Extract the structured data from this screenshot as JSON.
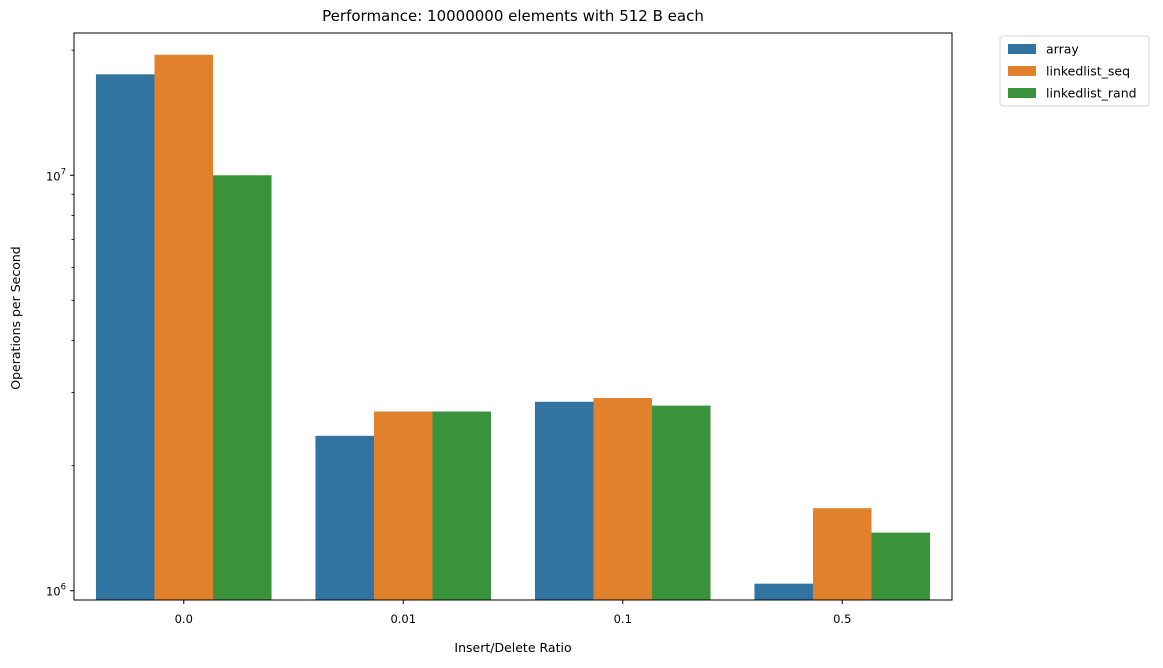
{
  "chart_data": {
    "type": "bar",
    "title": "Performance: 10000000 elements with 512 B each",
    "xlabel": "Insert/Delete Ratio",
    "ylabel": "Operations per Second",
    "yscale": "log",
    "ylim": [
      950000,
      22000000
    ],
    "categories": [
      "0.0",
      "0.01",
      "0.1",
      "0.5"
    ],
    "series": [
      {
        "name": "array",
        "color": "#3274a1",
        "values": [
          17500000,
          2360000,
          2850000,
          1040000
        ]
      },
      {
        "name": "linkedlist_seq",
        "color": "#e1812c",
        "values": [
          19500000,
          2700000,
          2910000,
          1580000
        ]
      },
      {
        "name": "linkedlist_rand",
        "color": "#3a923a",
        "values": [
          10000000,
          2700000,
          2790000,
          1380000
        ]
      }
    ],
    "yticks": [
      {
        "value": 1000000,
        "base": "10",
        "exp": "6"
      },
      {
        "value": 10000000,
        "base": "10",
        "exp": "7"
      }
    ],
    "minor_yticks": [
      2000000,
      3000000,
      4000000,
      5000000,
      6000000,
      7000000,
      8000000,
      9000000,
      20000000
    ],
    "grid": false,
    "legend": "outside-top-right"
  }
}
